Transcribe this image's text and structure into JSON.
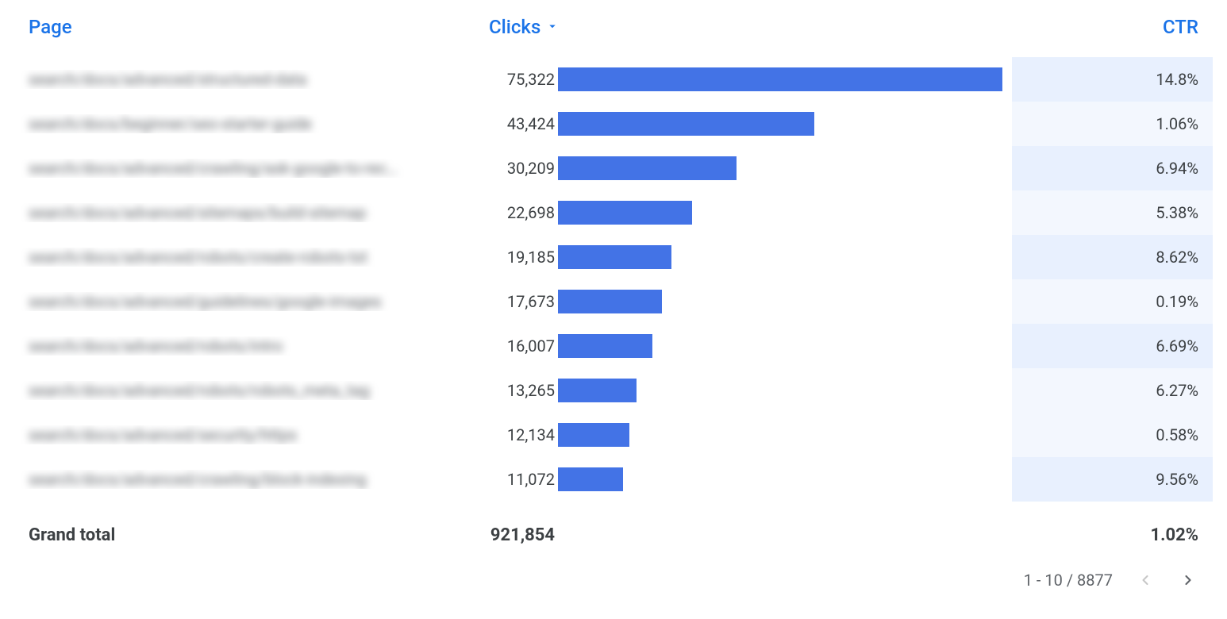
{
  "columns": {
    "page": "Page",
    "clicks": "Clicks",
    "ctr": "CTR"
  },
  "sort": {
    "column": "clicks",
    "dir": "desc"
  },
  "bar_color": "#4373e6",
  "ctr_shade_strong": "#e8f0fe",
  "ctr_shade_light": "#f3f7fe",
  "max_clicks_for_bar": 75322,
  "rows": [
    {
      "page": "search/docs/advanced/structured-data",
      "clicks": 75322,
      "clicks_fmt": "75,322",
      "ctr": "14.8%",
      "shade": "strong"
    },
    {
      "page": "search/docs/beginner/seo-starter-guide",
      "clicks": 43424,
      "clicks_fmt": "43,424",
      "ctr": "1.06%",
      "shade": "light"
    },
    {
      "page": "search/docs/advanced/crawling/ask-google-to-rec…",
      "clicks": 30209,
      "clicks_fmt": "30,209",
      "ctr": "6.94%",
      "shade": "strong"
    },
    {
      "page": "search/docs/advanced/sitemaps/build-sitemap",
      "clicks": 22698,
      "clicks_fmt": "22,698",
      "ctr": "5.38%",
      "shade": "light"
    },
    {
      "page": "search/docs/advanced/robots/create-robots-txt",
      "clicks": 19185,
      "clicks_fmt": "19,185",
      "ctr": "8.62%",
      "shade": "strong"
    },
    {
      "page": "search/docs/advanced/guidelines/google-images",
      "clicks": 17673,
      "clicks_fmt": "17,673",
      "ctr": "0.19%",
      "shade": "light"
    },
    {
      "page": "search/docs/advanced/robots/intro",
      "clicks": 16007,
      "clicks_fmt": "16,007",
      "ctr": "6.69%",
      "shade": "strong"
    },
    {
      "page": "search/docs/advanced/robots/robots_meta_tag",
      "clicks": 13265,
      "clicks_fmt": "13,265",
      "ctr": "6.27%",
      "shade": "light"
    },
    {
      "page": "search/docs/advanced/security/https",
      "clicks": 12134,
      "clicks_fmt": "12,134",
      "ctr": "0.58%",
      "shade": "light"
    },
    {
      "page": "search/docs/advanced/crawling/block-indexing",
      "clicks": 11072,
      "clicks_fmt": "11,072",
      "ctr": "9.56%",
      "shade": "strong"
    }
  ],
  "totals": {
    "label": "Grand total",
    "clicks_fmt": "921,854",
    "ctr": "1.02%"
  },
  "pagination": {
    "range": "1 - 10 / 8877",
    "prev_enabled": false,
    "next_enabled": true
  }
}
